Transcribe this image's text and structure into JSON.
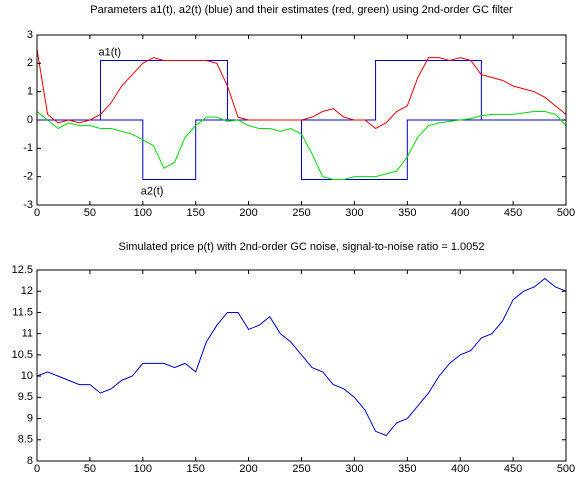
{
  "chart_data": [
    {
      "type": "line",
      "title": "Parameters a1(t), a2(t) (blue) and their estimates (red, green) using 2nd-order GC filter",
      "x": [
        0,
        10,
        20,
        30,
        40,
        50,
        60,
        70,
        80,
        90,
        100,
        110,
        120,
        130,
        140,
        150,
        160,
        170,
        180,
        190,
        200,
        210,
        220,
        230,
        240,
        250,
        260,
        270,
        280,
        290,
        300,
        310,
        320,
        330,
        340,
        350,
        360,
        370,
        380,
        390,
        400,
        410,
        420,
        430,
        440,
        450,
        460,
        470,
        480,
        490,
        500
      ],
      "series": [
        {
          "name": "a1(t)",
          "color": "#0000cc",
          "x": [
            0,
            60,
            60,
            180,
            180,
            320,
            320,
            420,
            420,
            500
          ],
          "values": [
            0,
            0,
            2.1,
            2.1,
            0,
            0,
            2.1,
            2.1,
            0,
            0
          ]
        },
        {
          "name": "a2(t)",
          "color": "#0000cc",
          "x": [
            0,
            100,
            100,
            150,
            150,
            250,
            250,
            350,
            350,
            500
          ],
          "values": [
            0,
            0,
            -2.1,
            -2.1,
            0,
            0,
            -2.1,
            -2.1,
            0,
            0
          ]
        },
        {
          "color": "#ee0000",
          "values": [
            2.5,
            0.2,
            -0.1,
            0,
            -0.1,
            0,
            0.2,
            0.6,
            1.2,
            1.6,
            2.0,
            2.2,
            2.1,
            2.1,
            2.1,
            2.1,
            2.1,
            2.0,
            1.2,
            0.1,
            0,
            0,
            0,
            0,
            0,
            0,
            0.1,
            0.3,
            0.4,
            0.1,
            0,
            0,
            -0.3,
            -0.1,
            0.3,
            0.5,
            1.5,
            2.2,
            2.2,
            2.1,
            2.2,
            2.1,
            1.6,
            1.5,
            1.4,
            1.2,
            1.1,
            1.0,
            0.8,
            0.5,
            0.2
          ]
        },
        {
          "color": "#00dd00",
          "values": [
            0.3,
            0,
            -0.3,
            -0.1,
            -0.2,
            -0.2,
            -0.3,
            -0.3,
            -0.4,
            -0.5,
            -0.7,
            -0.9,
            -1.7,
            -1.5,
            -0.6,
            -0.2,
            0.1,
            0.1,
            -0.05,
            0,
            -0.2,
            -0.3,
            -0.3,
            -0.4,
            -0.3,
            -0.5,
            -1.2,
            -2.0,
            -2.1,
            -2.1,
            -2.0,
            -2.0,
            -2.0,
            -1.9,
            -1.8,
            -1.3,
            -0.6,
            -0.2,
            -0.1,
            -0.05,
            0,
            0.05,
            0.15,
            0.2,
            0.2,
            0.2,
            0.25,
            0.3,
            0.3,
            0.2,
            -0.2
          ]
        }
      ],
      "xlim": [
        0,
        500
      ],
      "xticks": [
        0,
        50,
        100,
        150,
        200,
        250,
        300,
        350,
        400,
        450,
        500
      ],
      "ylim": [
        -3,
        3
      ],
      "yticks": [
        -3,
        -2,
        -1,
        0,
        1,
        2,
        3
      ]
    },
    {
      "type": "line",
      "title": "Simulated price p(t) with 2nd-order GC noise, signal-to-noise ratio = 1.0052",
      "x": [
        0,
        10,
        20,
        30,
        40,
        50,
        60,
        70,
        80,
        90,
        100,
        110,
        120,
        130,
        140,
        150,
        160,
        170,
        180,
        190,
        200,
        210,
        220,
        230,
        240,
        250,
        260,
        270,
        280,
        290,
        300,
        310,
        320,
        330,
        340,
        350,
        360,
        370,
        380,
        390,
        400,
        410,
        420,
        430,
        440,
        450,
        460,
        470,
        480,
        490,
        500
      ],
      "series": [
        {
          "color": "#0000cc",
          "values": [
            10.0,
            10.1,
            10.0,
            9.9,
            9.8,
            9.8,
            9.6,
            9.7,
            9.9,
            10.0,
            10.3,
            10.3,
            10.3,
            10.2,
            10.3,
            10.1,
            10.8,
            11.2,
            11.5,
            11.5,
            11.1,
            11.2,
            11.4,
            11.0,
            10.8,
            10.5,
            10.2,
            10.1,
            9.8,
            9.7,
            9.5,
            9.2,
            8.7,
            8.6,
            8.9,
            9.0,
            9.3,
            9.6,
            10.0,
            10.3,
            10.5,
            10.6,
            10.9,
            11.0,
            11.3,
            11.8,
            12.0,
            12.1,
            12.3,
            12.1,
            12.0
          ]
        }
      ],
      "xlim": [
        0,
        500
      ],
      "xticks": [
        0,
        50,
        100,
        150,
        200,
        250,
        300,
        350,
        400,
        450,
        500
      ],
      "ylim": [
        8,
        12.5
      ],
      "yticks": [
        8,
        8.5,
        9,
        9.5,
        10,
        10.5,
        11,
        11.5,
        12,
        12.5
      ]
    }
  ]
}
